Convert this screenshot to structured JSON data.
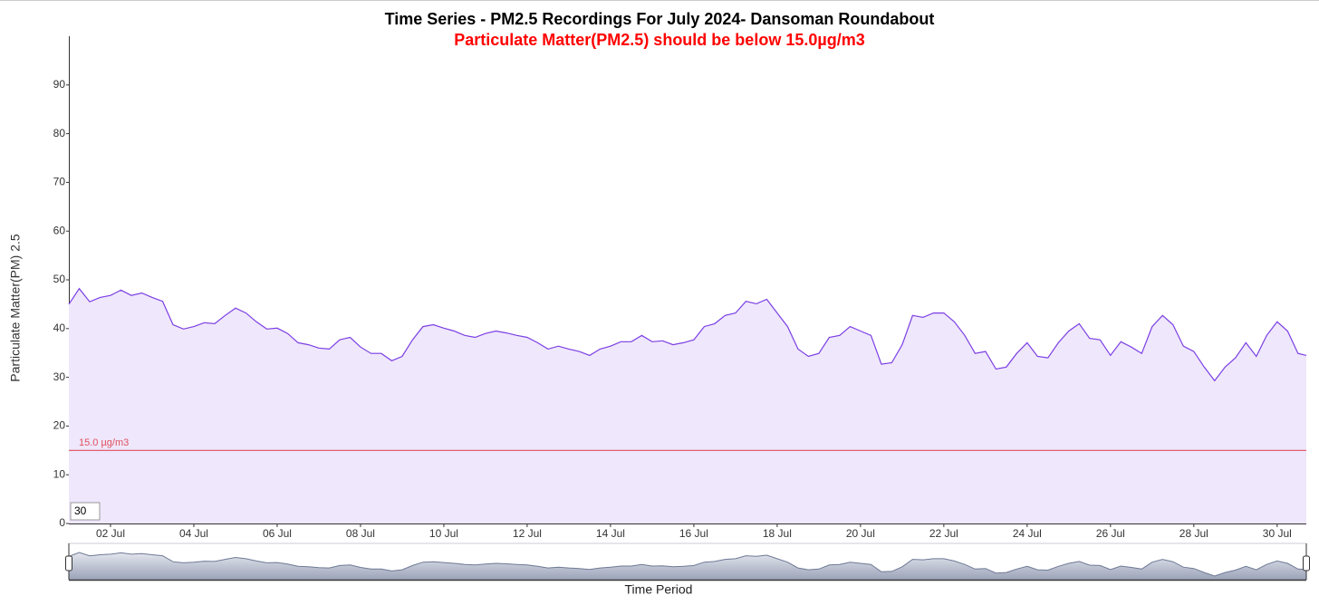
{
  "chart_data": {
    "type": "area",
    "title": "Time Series - PM2.5 Recordings For July 2024- Dansoman Roundabout",
    "subtitle": "Particulate Matter(PM2.5) should be below 15.0µg/m3",
    "y_label": "Particulate Matter(PM) 2.5",
    "x_label": "Time Period",
    "window_input": "30",
    "threshold": {
      "value": 15,
      "label": "15.0 µg/m3",
      "color": "#e0505e"
    },
    "xlim": [
      1,
      30.7
    ],
    "xticks": [
      {
        "value": 2,
        "label": "02 Jul"
      },
      {
        "value": 4,
        "label": "04 Jul"
      },
      {
        "value": 6,
        "label": "06 Jul"
      },
      {
        "value": 8,
        "label": "08 Jul"
      },
      {
        "value": 10,
        "label": "10 Jul"
      },
      {
        "value": 12,
        "label": "12 Jul"
      },
      {
        "value": 14,
        "label": "14 Jul"
      },
      {
        "value": 16,
        "label": "16 Jul"
      },
      {
        "value": 18,
        "label": "18 Jul"
      },
      {
        "value": 20,
        "label": "20 Jul"
      },
      {
        "value": 22,
        "label": "22 Jul"
      },
      {
        "value": 24,
        "label": "24 Jul"
      },
      {
        "value": 26,
        "label": "26 Jul"
      },
      {
        "value": 28,
        "label": "28 Jul"
      },
      {
        "value": 30,
        "label": "30 Jul"
      }
    ],
    "ylim": [
      0,
      100
    ],
    "yticks": [
      0,
      10,
      20,
      30,
      40,
      50,
      60,
      70,
      80,
      90
    ],
    "grid": false,
    "x": [
      1,
      1.25,
      1.5,
      1.75,
      2,
      2.25,
      2.5,
      2.75,
      3,
      3.25,
      3.5,
      3.75,
      4,
      4.25,
      4.5,
      4.75,
      5,
      5.25,
      5.5,
      5.75,
      6,
      6.25,
      6.5,
      6.75,
      7,
      7.25,
      7.5,
      7.75,
      8,
      8.25,
      8.5,
      8.75,
      9,
      9.25,
      9.5,
      9.75,
      10,
      10.25,
      10.5,
      10.75,
      11,
      11.25,
      11.5,
      11.75,
      12,
      12.25,
      12.5,
      12.75,
      13,
      13.25,
      13.5,
      13.75,
      14,
      14.25,
      14.5,
      14.75,
      15,
      15.25,
      15.5,
      15.75,
      16,
      16.25,
      16.5,
      16.75,
      17,
      17.25,
      17.5,
      17.75,
      18,
      18.25,
      18.5,
      18.75,
      19,
      19.25,
      19.5,
      19.75,
      20,
      20.25,
      20.5,
      20.75,
      21,
      21.25,
      21.5,
      21.75,
      22,
      22.25,
      22.5,
      22.75,
      23,
      23.25,
      23.5,
      23.75,
      24,
      24.25,
      24.5,
      24.75,
      25,
      25.25,
      25.5,
      25.75,
      26,
      26.25,
      26.5,
      26.75,
      27,
      27.25,
      27.5,
      27.75,
      28,
      28.25,
      28.5,
      28.75,
      29,
      29.25,
      29.5,
      29.75,
      30,
      30.25,
      30.5,
      30.7
    ],
    "series": [
      {
        "name": "PM2.5",
        "color": "#7b3fe4",
        "fill": "#efe7fb",
        "values": [
          45,
          48.2,
          45.5,
          46.4,
          46.8,
          47.9,
          46.8,
          47.3,
          46.4,
          45.6,
          40.8,
          39.9,
          40.4,
          41.2,
          41,
          42.7,
          44.2,
          43.2,
          41.4,
          39.9,
          40.1,
          39,
          37.1,
          36.7,
          36,
          35.8,
          37.7,
          38.2,
          36.2,
          34.9,
          34.9,
          33.4,
          34.3,
          37.7,
          40.4,
          40.8,
          40.1,
          39.5,
          38.6,
          38.2,
          39,
          39.5,
          39.1,
          38.6,
          38.2,
          37.1,
          35.8,
          36.4,
          35.8,
          35.3,
          34.5,
          35.8,
          36.4,
          37.3,
          37.3,
          38.6,
          37.3,
          37.5,
          36.7,
          37.1,
          37.7,
          40.4,
          41,
          42.7,
          43.2,
          45.6,
          45.1,
          46,
          43.2,
          40.4,
          35.8,
          34.3,
          34.9,
          38.2,
          38.6,
          40.4,
          39.5,
          38.6,
          32.7,
          33,
          36.7,
          42.7,
          42.3,
          43.2,
          43.2,
          41.4,
          38.6,
          34.9,
          35.3,
          31.7,
          32.1,
          34.9,
          37.1,
          34.3,
          34,
          37.1,
          39.5,
          41,
          38,
          37.7,
          34.5,
          37.3,
          36.2,
          34.9,
          40.4,
          42.7,
          40.8,
          36.4,
          35.3,
          32.1,
          29.3,
          32.1,
          34,
          37.1,
          34.3,
          38.6,
          41.4,
          39.5,
          34.9,
          34.5
        ]
      }
    ]
  }
}
